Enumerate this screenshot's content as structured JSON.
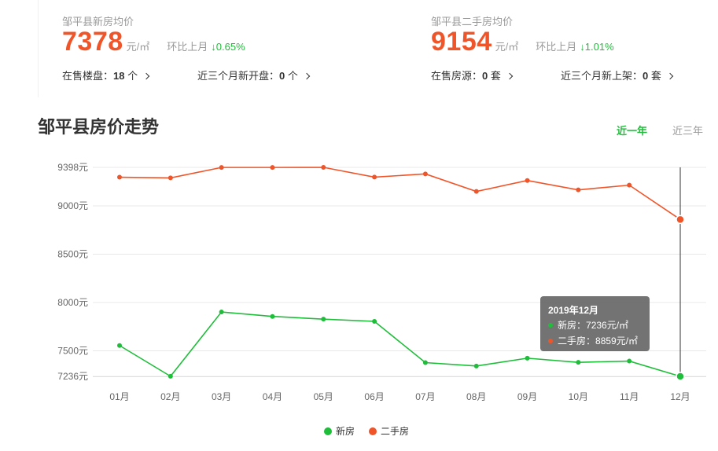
{
  "new_house": {
    "title": "邹平县新房均价",
    "price": "7378",
    "unit": "元/㎡",
    "change_label": "环比上月",
    "change_value": "↓0.65%",
    "on_sale_label": "在售楼盘：",
    "on_sale_count": "18",
    "on_sale_unit": " 个",
    "recent_label": "近三个月新开盘：",
    "recent_count": "0",
    "recent_unit": " 个"
  },
  "second_hand": {
    "title": "邹平县二手房均价",
    "price": "9154",
    "unit": "元/㎡",
    "change_label": "环比上月",
    "change_value": "↓1.01%",
    "on_sale_label": "在售房源：",
    "on_sale_count": "0",
    "on_sale_unit": " 套",
    "recent_label": "近三个月新上架：",
    "recent_count": "0",
    "recent_unit": " 套"
  },
  "trend": {
    "title": "邹平县房价走势",
    "tabs": [
      "近一年",
      "近三年"
    ],
    "active_tab": "近一年"
  },
  "tooltip": {
    "title": "2019年12月",
    "new_label": "新房：",
    "new_value": "7236元/㎡",
    "second_label": "二手房：",
    "second_value": "8859元/㎡"
  },
  "colors": {
    "new": "#1fbe3a",
    "second": "#f0552a",
    "change": "#1fbe3a"
  },
  "chart_data": {
    "type": "line",
    "categories": [
      "01月",
      "02月",
      "03月",
      "04月",
      "05月",
      "06月",
      "07月",
      "08月",
      "09月",
      "10月",
      "11月",
      "12月"
    ],
    "series": [
      {
        "name": "新房",
        "color": "#1fbe3a",
        "values": [
          7555,
          7237,
          7902,
          7856,
          7828,
          7805,
          7378,
          7343,
          7424,
          7381,
          7394,
          7236
        ]
      },
      {
        "name": "二手房",
        "color": "#f0552a",
        "values": [
          9296,
          9289,
          9397,
          9397,
          9398,
          9297,
          9330,
          9149,
          9262,
          9165,
          9214,
          8859
        ]
      }
    ],
    "yticks": [
      7236,
      7500,
      8000,
      8500,
      9000,
      9398
    ],
    "ytick_labels": [
      "7236元",
      "7500元",
      "8000元",
      "8500元",
      "9000元",
      "9398元"
    ],
    "ylim": [
      7236,
      9398
    ],
    "highlight_index": 11,
    "legend": [
      "新房",
      "二手房"
    ],
    "legend_position": "bottom",
    "grid": true
  }
}
